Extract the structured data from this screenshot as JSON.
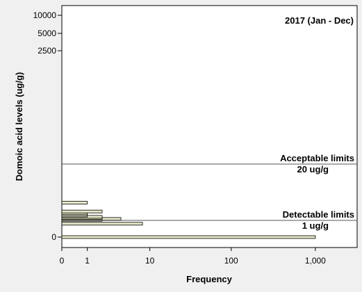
{
  "chart_data": {
    "type": "bar",
    "orientation": "horizontal",
    "title": "2017 (Jan - Dec)",
    "xlabel": "Frequency",
    "ylabel": "Domoic acid levels (ug/g)",
    "x_scale": "log1p",
    "x_ticks": [
      {
        "value": 0,
        "label": "0"
      },
      {
        "value": 1,
        "label": "1"
      },
      {
        "value": 10,
        "label": "10"
      },
      {
        "value": 100,
        "label": "100"
      },
      {
        "value": 1000,
        "label": "1,000"
      }
    ],
    "y_ticks": [
      {
        "value": 10000,
        "label": "10000"
      },
      {
        "value": 5000,
        "label": "5000"
      },
      {
        "value": 2500,
        "label": "2500"
      },
      {
        "value": 0,
        "label": "0"
      }
    ],
    "bars": [
      {
        "level": 0,
        "frequency": 1000
      },
      {
        "level": 0.8,
        "frequency": 8
      },
      {
        "level": 1.2,
        "frequency": 2
      },
      {
        "level": 1.5,
        "frequency": 4
      },
      {
        "level": 1.8,
        "frequency": 2
      },
      {
        "level": 2.2,
        "frequency": 2
      },
      {
        "level": 2.6,
        "frequency": 1
      },
      {
        "level": 3.0,
        "frequency": 1
      },
      {
        "level": 3.5,
        "frequency": 1
      },
      {
        "level": 4.0,
        "frequency": 2
      },
      {
        "level": 7.0,
        "frequency": 1
      }
    ],
    "reference_lines": [
      {
        "value": 20,
        "label": "Acceptable limits",
        "sublabel": "20 ug/g"
      },
      {
        "value": 1,
        "label": "Detectable limits",
        "sublabel": "1 ug/g"
      }
    ],
    "colors": {
      "bar_fill": "#e6e6c8",
      "bar_stroke": "#000000",
      "background": "#ffffff"
    }
  }
}
